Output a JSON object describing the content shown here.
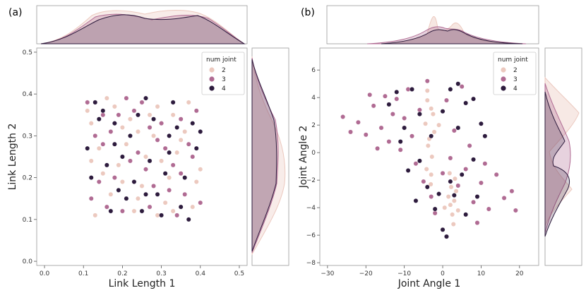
{
  "colors": {
    "j2": "#ecc9bf",
    "j3": "#b06b93",
    "j4": "#2d1b3d",
    "frame": "#999999"
  },
  "chart_data": [
    {
      "panel": "(a)",
      "type": "scatter",
      "xlabel": "Link Length 1",
      "ylabel": "Link Length 2",
      "xlim": [
        -0.02,
        0.52
      ],
      "ylim": [
        -0.01,
        0.51
      ],
      "xticks": [
        0.0,
        0.1,
        0.2,
        0.3,
        0.4,
        0.5
      ],
      "xtick_labels": [
        "0.0",
        "0.1",
        "0.2",
        "0.3",
        "0.4",
        "0.5"
      ],
      "yticks": [
        0.0,
        0.1,
        0.2,
        0.3,
        0.4,
        0.5
      ],
      "ytick_labels": [
        "0.0",
        "0.1",
        "0.2",
        "0.3",
        "0.4",
        "0.5"
      ],
      "legend": {
        "title": "num joint",
        "placement": "top-right",
        "entries": [
          "2",
          "3",
          "4"
        ]
      },
      "series": [
        {
          "name": "2",
          "points": [
            [
              0.12,
              0.33
            ],
            [
              0.15,
              0.21
            ],
            [
              0.18,
              0.37
            ],
            [
              0.21,
              0.28
            ],
            [
              0.24,
              0.15
            ],
            [
              0.27,
              0.35
            ],
            [
              0.3,
              0.24
            ],
            [
              0.33,
              0.12
            ],
            [
              0.36,
              0.31
            ],
            [
              0.39,
              0.19
            ],
            [
              0.13,
              0.11
            ],
            [
              0.16,
              0.39
            ],
            [
              0.19,
              0.23
            ],
            [
              0.22,
              0.34
            ],
            [
              0.25,
              0.18
            ],
            [
              0.28,
              0.3
            ],
            [
              0.31,
              0.14
            ],
            [
              0.34,
              0.26
            ],
            [
              0.37,
              0.38
            ],
            [
              0.4,
              0.22
            ],
            [
              0.14,
              0.27
            ],
            [
              0.17,
              0.16
            ],
            [
              0.2,
              0.32
            ],
            [
              0.23,
              0.12
            ],
            [
              0.26,
              0.25
            ],
            [
              0.29,
              0.37
            ],
            [
              0.32,
              0.2
            ],
            [
              0.35,
              0.29
            ],
            [
              0.38,
              0.13
            ],
            [
              0.11,
              0.36
            ],
            [
              0.2,
              0.19
            ],
            [
              0.29,
              0.11
            ],
            [
              0.24,
              0.31
            ],
            [
              0.33,
              0.35
            ],
            [
              0.12,
              0.24
            ]
          ]
        },
        {
          "name": "3",
          "points": [
            [
              0.11,
              0.38
            ],
            [
              0.14,
              0.19
            ],
            [
              0.17,
              0.31
            ],
            [
              0.2,
              0.12
            ],
            [
              0.23,
              0.36
            ],
            [
              0.26,
              0.22
            ],
            [
              0.29,
              0.29
            ],
            [
              0.32,
              0.17
            ],
            [
              0.35,
              0.34
            ],
            [
              0.38,
              0.25
            ],
            [
              0.12,
              0.15
            ],
            [
              0.15,
              0.28
            ],
            [
              0.18,
              0.2
            ],
            [
              0.21,
              0.39
            ],
            [
              0.24,
              0.26
            ],
            [
              0.27,
              0.13
            ],
            [
              0.3,
              0.33
            ],
            [
              0.33,
              0.23
            ],
            [
              0.36,
              0.16
            ],
            [
              0.39,
              0.36
            ],
            [
              0.13,
              0.3
            ],
            [
              0.16,
              0.13
            ],
            [
              0.19,
              0.35
            ],
            [
              0.22,
              0.24
            ],
            [
              0.25,
              0.38
            ],
            [
              0.28,
              0.18
            ],
            [
              0.31,
              0.27
            ],
            [
              0.34,
              0.11
            ],
            [
              0.37,
              0.28
            ],
            [
              0.4,
              0.14
            ],
            [
              0.15,
              0.35
            ],
            [
              0.27,
              0.32
            ],
            [
              0.35,
              0.21
            ]
          ]
        },
        {
          "name": "4",
          "points": [
            [
              0.11,
              0.27
            ],
            [
              0.14,
              0.34
            ],
            [
              0.17,
              0.12
            ],
            [
              0.2,
              0.25
            ],
            [
              0.23,
              0.19
            ],
            [
              0.26,
              0.39
            ],
            [
              0.29,
              0.16
            ],
            [
              0.32,
              0.3
            ],
            [
              0.35,
              0.13
            ],
            [
              0.38,
              0.33
            ],
            [
              0.12,
              0.2
            ],
            [
              0.15,
              0.36
            ],
            [
              0.18,
              0.28
            ],
            [
              0.21,
              0.15
            ],
            [
              0.24,
              0.35
            ],
            [
              0.27,
              0.24
            ],
            [
              0.3,
              0.11
            ],
            [
              0.33,
              0.38
            ],
            [
              0.36,
              0.2
            ],
            [
              0.39,
              0.27
            ],
            [
              0.13,
              0.38
            ],
            [
              0.16,
              0.23
            ],
            [
              0.19,
              0.17
            ],
            [
              0.22,
              0.3
            ],
            [
              0.25,
              0.12
            ],
            [
              0.28,
              0.34
            ],
            [
              0.31,
              0.21
            ],
            [
              0.34,
              0.32
            ],
            [
              0.37,
              0.1
            ],
            [
              0.4,
              0.31
            ],
            [
              0.18,
              0.33
            ],
            [
              0.26,
              0.16
            ],
            [
              0.32,
              0.26
            ]
          ]
        }
      ]
    },
    {
      "panel": "(b)",
      "type": "scatter",
      "xlabel": "Joint Angle 1",
      "ylabel": "Joint Angle 2",
      "xlim": [
        -32,
        25
      ],
      "ylim": [
        -8.2,
        7.6
      ],
      "xticks": [
        -30,
        -20,
        -10,
        0,
        10,
        20
      ],
      "xtick_labels": [
        "−30",
        "−20",
        "−10",
        "0",
        "10",
        "20"
      ],
      "yticks": [
        -8,
        -6,
        -4,
        -2,
        0,
        2,
        4,
        6
      ],
      "ytick_labels": [
        "−8",
        "−6",
        "−4",
        "−2",
        "0",
        "2",
        "4",
        "6"
      ],
      "legend": {
        "title": "num joint",
        "placement": "top-right",
        "entries": [
          "2",
          "3",
          "4"
        ]
      },
      "series": [
        {
          "name": "2",
          "points": [
            [
              -4,
              4.5
            ],
            [
              -3,
              3.2
            ],
            [
              -4.5,
              2.1
            ],
            [
              -3.5,
              1.0
            ],
            [
              -2.8,
              -0.3
            ],
            [
              -4.2,
              -1.2
            ],
            [
              -3.1,
              -2.3
            ],
            [
              -3.8,
              0.5
            ],
            [
              -2.5,
              2.8
            ],
            [
              2.2,
              -2.5
            ],
            [
              3,
              -3.5
            ],
            [
              2.5,
              -4.5
            ],
            [
              1.8,
              -1.5
            ],
            [
              3.5,
              -2.8
            ],
            [
              2.8,
              -5.2
            ],
            [
              1.5,
              -3.2
            ],
            [
              -1,
              2
            ],
            [
              0.5,
              -4
            ],
            [
              -4,
              3.8
            ],
            [
              -3,
              -1.6
            ],
            [
              2,
              -3.8
            ],
            [
              4,
              -4.2
            ],
            [
              -2.2,
              1.5
            ],
            [
              3.2,
              -1.9
            ]
          ]
        },
        {
          "name": "3",
          "points": [
            [
              -26,
              2.6
            ],
            [
              -22,
              2.2
            ],
            [
              -20,
              1.3
            ],
            [
              -18,
              3.4
            ],
            [
              -16,
              1.8
            ],
            [
              -14,
              0.8
            ],
            [
              -12,
              3.9
            ],
            [
              -10,
              2.5
            ],
            [
              -8,
              1.2
            ],
            [
              -6,
              3.1
            ],
            [
              -15,
              4.1
            ],
            [
              -11,
              0.2
            ],
            [
              -7,
              -0.8
            ],
            [
              -5,
              -2.1
            ],
            [
              -3,
              -3.2
            ],
            [
              0,
              -1.5
            ],
            [
              2,
              -0.4
            ],
            [
              4,
              -2.4
            ],
            [
              6,
              -1.2
            ],
            [
              8,
              -3.6
            ],
            [
              10,
              -2.2
            ],
            [
              12,
              -4.1
            ],
            [
              14,
              -1.6
            ],
            [
              16,
              -3.3
            ],
            [
              18,
              -2.8
            ],
            [
              19,
              -4.2
            ],
            [
              -9,
              4.6
            ],
            [
              -4,
              5.2
            ],
            [
              1,
              3.8
            ],
            [
              3,
              1.6
            ],
            [
              -13,
              2.8
            ],
            [
              -19,
              4.2
            ],
            [
              -24,
              1.5
            ],
            [
              5,
              4.8
            ],
            [
              7,
              0.5
            ],
            [
              9,
              -5.1
            ],
            [
              -2,
              -4.4
            ],
            [
              11,
              -0.8
            ],
            [
              -17,
              0.3
            ]
          ]
        },
        {
          "name": "4",
          "points": [
            [
              -14,
              3.5
            ],
            [
              -10,
              1.8
            ],
            [
              -8,
              4.6
            ],
            [
              -6,
              -0.6
            ],
            [
              -4,
              -2.5
            ],
            [
              -2,
              -4.1
            ],
            [
              0,
              -5.6
            ],
            [
              1,
              -6.1
            ],
            [
              2,
              4.6
            ],
            [
              4,
              5.0
            ],
            [
              6,
              3.6
            ],
            [
              8,
              3.9
            ],
            [
              10,
              2.1
            ],
            [
              11,
              1.2
            ],
            [
              8,
              -0.5
            ],
            [
              5,
              -1.6
            ],
            [
              3,
              -3.1
            ],
            [
              -6,
              2.8
            ],
            [
              -9,
              -1.3
            ],
            [
              -11,
              0.8
            ],
            [
              -3,
              1.2
            ],
            [
              0,
              3.0
            ],
            [
              2,
              -2.1
            ],
            [
              6,
              -4.5
            ],
            [
              9,
              -3.2
            ],
            [
              -7,
              -3.5
            ],
            [
              4,
              1.8
            ],
            [
              -12,
              4.4
            ],
            [
              -1,
              -3.0
            ]
          ]
        }
      ]
    }
  ]
}
